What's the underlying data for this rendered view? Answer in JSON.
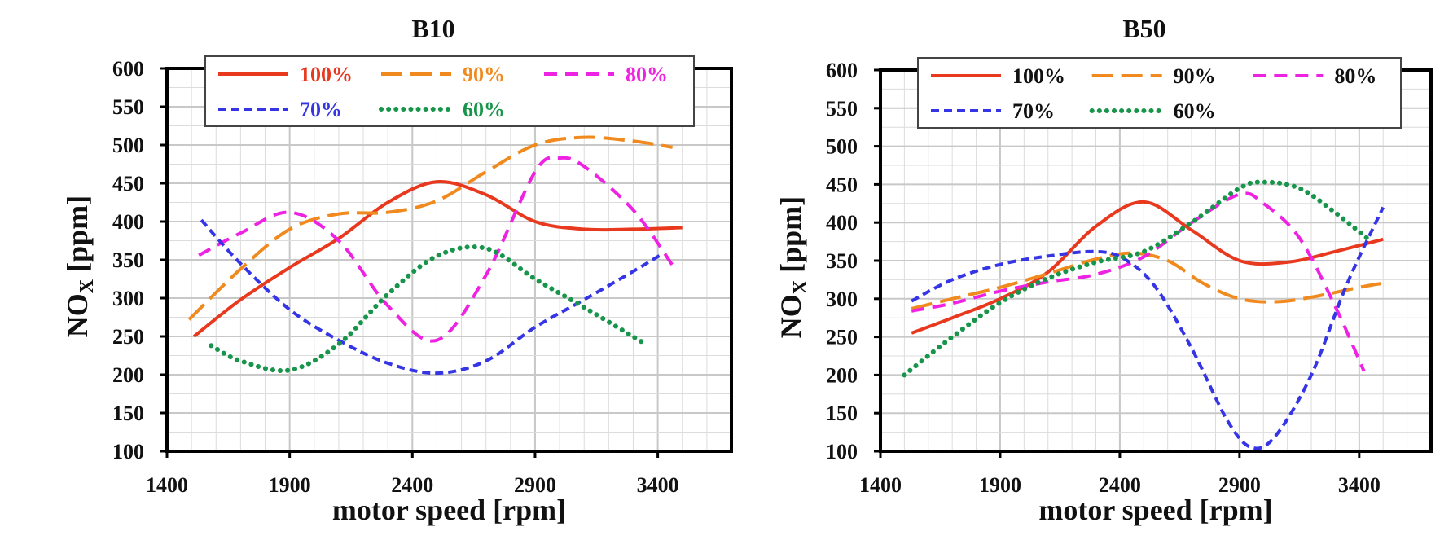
{
  "chart_data": [
    {
      "type": "line",
      "title": "B10",
      "xlabel": "motor speed [rpm]",
      "ylabel_main": "NO",
      "ylabel_sub": "X",
      "ylabel_rest": " [ppm]",
      "xlim": [
        1400,
        3700
      ],
      "ylim": [
        100,
        600
      ],
      "xticks": [
        1400,
        1900,
        2400,
        2900,
        3400
      ],
      "yticks": [
        100,
        150,
        200,
        250,
        300,
        350,
        400,
        450,
        500,
        550,
        600
      ],
      "grid": true,
      "legend_position": "top",
      "series": [
        {
          "name": "100%",
          "color": "#e8391e",
          "dash": "solid",
          "x": [
            1510,
            1700,
            1900,
            2100,
            2300,
            2500,
            2700,
            2900,
            3100,
            3300,
            3500
          ],
          "y": [
            250,
            298,
            340,
            378,
            425,
            452,
            435,
            400,
            390,
            390,
            392
          ]
        },
        {
          "name": "90%",
          "color": "#f08a1e",
          "dash": "longdash",
          "x": [
            1490,
            1700,
            1900,
            2100,
            2300,
            2500,
            2700,
            2900,
            3100,
            3300,
            3460
          ],
          "y": [
            272,
            338,
            390,
            410,
            412,
            427,
            465,
            500,
            510,
            505,
            497
          ]
        },
        {
          "name": "80%",
          "color": "#ee22e2",
          "dash": "dash",
          "x": [
            1530,
            1700,
            1900,
            2100,
            2300,
            2500,
            2700,
            2900,
            3000,
            3100,
            3300,
            3460
          ],
          "y": [
            356,
            385,
            412,
            375,
            290,
            245,
            330,
            465,
            483,
            472,
            415,
            343
          ]
        },
        {
          "name": "70%",
          "color": "#3535e6",
          "dash": "shortdash",
          "x": [
            1540,
            1700,
            1900,
            2100,
            2300,
            2500,
            2700,
            2900,
            3100,
            3300,
            3420
          ],
          "y": [
            402,
            345,
            285,
            245,
            215,
            202,
            218,
            262,
            298,
            335,
            358
          ]
        },
        {
          "name": "60%",
          "color": "#17954a",
          "dash": "dot",
          "x": [
            1580,
            1700,
            1900,
            2100,
            2300,
            2500,
            2700,
            2900,
            3100,
            3350
          ],
          "y": [
            238,
            218,
            206,
            240,
            305,
            355,
            365,
            325,
            288,
            240
          ]
        }
      ]
    },
    {
      "type": "line",
      "title": "B50",
      "xlabel": "motor speed [rpm]",
      "ylabel_main": "NO",
      "ylabel_sub": "X",
      "ylabel_rest": " [ppm]",
      "xlim": [
        1400,
        3700
      ],
      "ylim": [
        100,
        600
      ],
      "xticks": [
        1400,
        1900,
        2400,
        2900,
        3400
      ],
      "yticks": [
        100,
        150,
        200,
        250,
        300,
        350,
        400,
        450,
        500,
        550,
        600
      ],
      "grid": true,
      "legend_position": "top",
      "series": [
        {
          "name": "100%",
          "color": "#e8391e",
          "dash": "solid",
          "x": [
            1530,
            1700,
            1900,
            2100,
            2300,
            2500,
            2700,
            2900,
            3100,
            3300,
            3500
          ],
          "y": [
            255,
            275,
            300,
            335,
            395,
            427,
            390,
            350,
            348,
            362,
            378
          ]
        },
        {
          "name": "90%",
          "color": "#f08a1e",
          "dash": "longdash",
          "x": [
            1530,
            1700,
            1900,
            2100,
            2300,
            2450,
            2600,
            2750,
            2900,
            3050,
            3200,
            3400,
            3490
          ],
          "y": [
            287,
            300,
            315,
            333,
            352,
            360,
            350,
            320,
            300,
            296,
            302,
            315,
            320
          ]
        },
        {
          "name": "80%",
          "color": "#ee22e2",
          "dash": "dash",
          "x": [
            1530,
            1700,
            1900,
            2100,
            2300,
            2500,
            2700,
            2900,
            3000,
            3150,
            3300,
            3420
          ],
          "y": [
            284,
            294,
            310,
            322,
            332,
            355,
            400,
            437,
            425,
            380,
            290,
            205
          ]
        },
        {
          "name": "70%",
          "color": "#3535e6",
          "dash": "shortdash",
          "x": [
            1530,
            1700,
            1900,
            2100,
            2300,
            2420,
            2550,
            2700,
            2850,
            2950,
            3050,
            3200,
            3350,
            3500
          ],
          "y": [
            297,
            325,
            345,
            356,
            362,
            352,
            315,
            235,
            140,
            105,
            120,
            200,
            320,
            420
          ]
        },
        {
          "name": "60%",
          "color": "#17954a",
          "dash": "dot",
          "x": [
            1500,
            1700,
            1900,
            2100,
            2300,
            2500,
            2700,
            2900,
            3000,
            3150,
            3300,
            3450
          ],
          "y": [
            200,
            250,
            295,
            327,
            348,
            362,
            400,
            445,
            453,
            445,
            413,
            375
          ]
        }
      ]
    }
  ]
}
